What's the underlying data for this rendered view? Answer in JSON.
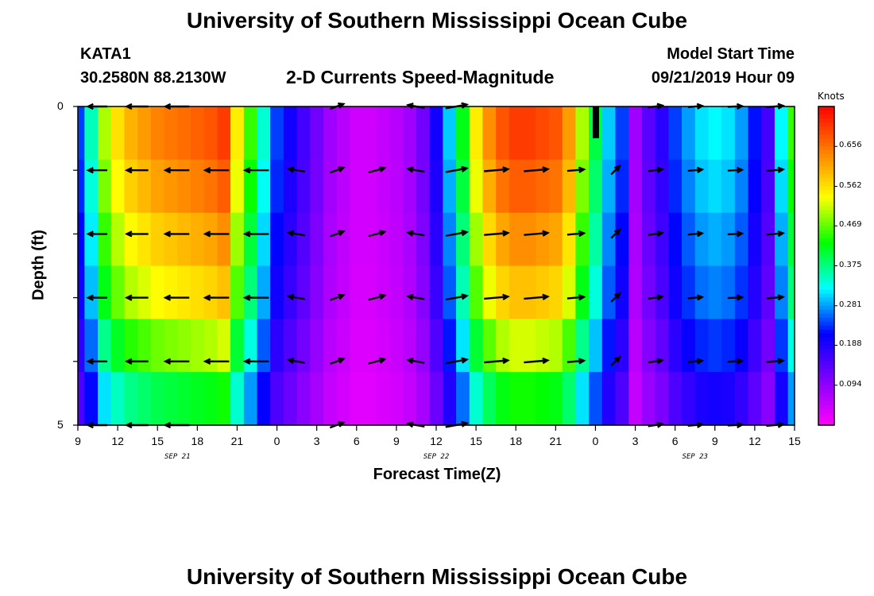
{
  "header": {
    "title": "University of Southern Mississippi Ocean Cube",
    "station": "KATA1",
    "coords": "30.2580N 88.2130W",
    "subtitle": "2-D Currents Speed-Magnitude",
    "model_label": "Model Start Time",
    "model_time": "09/21/2019 Hour 09"
  },
  "footer": {
    "title": "University of Southern Mississippi Ocean Cube"
  },
  "colors": {
    "scale": [
      "#ff00ff",
      "#8000ff",
      "#0000ff",
      "#00ffff",
      "#00ff00",
      "#ffff00",
      "#ff8000",
      "#ff0000"
    ],
    "arrow": "#000000",
    "frame": "#000000"
  },
  "chart_data": {
    "type": "heatmap",
    "title": "2-D Currents Speed-Magnitude",
    "xlabel": "Forecast Time(Z)",
    "ylabel": "Depth (ft)",
    "x_ticks": [
      "9",
      "12",
      "15",
      "18",
      "21",
      "0",
      "3",
      "6",
      "9",
      "12",
      "15",
      "18",
      "21",
      "0",
      "3",
      "6",
      "9",
      "12",
      "15"
    ],
    "x_range_hours": [
      0,
      54
    ],
    "y_ticks": [
      "0",
      "5"
    ],
    "y_range": [
      0,
      5
    ],
    "date_labels": [
      {
        "text": "SEP 21",
        "hour": 7.5
      },
      {
        "text": "SEP 22",
        "hour": 27
      },
      {
        "text": "SEP 23",
        "hour": 46.5
      }
    ],
    "colorbar": {
      "unit": "Knots",
      "labels": [
        "0.656",
        "0.562",
        "0.469",
        "0.375",
        "0.281",
        "0.188",
        "0.094"
      ],
      "label_values": [
        0.656,
        0.562,
        0.469,
        0.375,
        0.281,
        0.188,
        0.094
      ],
      "vmin": 0.0,
      "vmax": 0.75
    },
    "depths_ft": [
      0,
      1,
      2,
      3,
      4,
      5
    ],
    "hours": [
      0,
      1,
      2,
      3,
      4,
      5,
      6,
      7,
      8,
      9,
      10,
      11,
      12,
      13,
      14,
      15,
      16,
      17,
      18,
      19,
      20,
      21,
      22,
      23,
      24,
      25,
      26,
      27,
      28,
      29,
      30,
      31,
      32,
      33,
      34,
      35,
      36,
      37,
      38,
      39,
      40,
      41,
      42,
      43,
      44,
      45,
      46,
      47,
      48,
      49,
      50,
      51,
      52,
      53,
      54
    ],
    "surface_speed_knots": [
      0.24,
      0.35,
      0.5,
      0.56,
      0.6,
      0.62,
      0.64,
      0.65,
      0.66,
      0.67,
      0.68,
      0.7,
      0.55,
      0.45,
      0.34,
      0.24,
      0.2,
      0.16,
      0.12,
      0.08,
      0.06,
      0.04,
      0.04,
      0.05,
      0.06,
      0.08,
      0.12,
      0.2,
      0.3,
      0.42,
      0.55,
      0.63,
      0.68,
      0.7,
      0.7,
      0.69,
      0.68,
      0.62,
      0.5,
      0.4,
      0.3,
      0.24,
      0.08,
      0.14,
      0.18,
      0.24,
      0.28,
      0.31,
      0.32,
      0.31,
      0.28,
      0.22,
      0.16,
      0.32,
      0.45
    ],
    "depth_factor": [
      1.0,
      0.96,
      0.9,
      0.84,
      0.74,
      0.62
    ],
    "arrow_hours": [
      1.5,
      4.5,
      7.5,
      10.5,
      13.5,
      16.5,
      19.5,
      22.5,
      25.5,
      28.5,
      31.5,
      34.5,
      37.5,
      40.5,
      43.5,
      46.5,
      49.5,
      52.5
    ],
    "arrow_depths": [
      0,
      1,
      2,
      3,
      4,
      5
    ],
    "arrow_dir_deg": [
      180,
      180,
      180,
      180,
      180,
      170,
      20,
      15,
      170,
      10,
      5,
      5,
      5,
      45,
      8,
      5,
      3,
      5
    ],
    "arrow_len_scale": [
      0.8,
      0.9,
      1.0,
      1.0,
      1.0,
      0.7,
      0.6,
      0.7,
      0.7,
      0.9,
      1.0,
      1.0,
      0.7,
      0.5,
      0.6,
      0.6,
      0.6,
      0.7
    ]
  }
}
